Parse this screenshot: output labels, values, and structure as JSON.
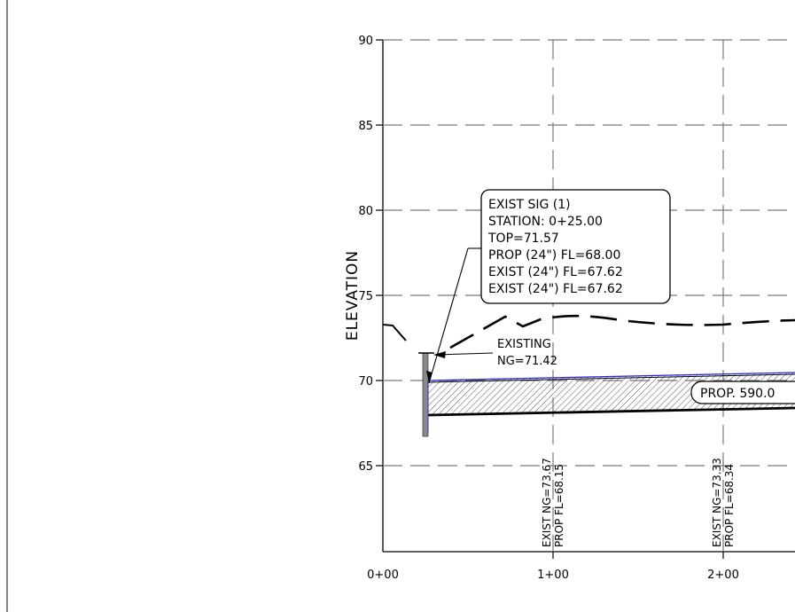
{
  "axis": {
    "ylabel": "ELEVATION",
    "y_ticks": [
      "90",
      "85",
      "80",
      "75",
      "70",
      "65"
    ],
    "x_ticks": [
      "0+00",
      "1+00",
      "2+00"
    ]
  },
  "callout": {
    "lines": [
      "EXIST SIG (1)",
      "STATION: 0+25.00",
      "TOP=71.57",
      "PROP (24\") FL=68.00",
      "EXIST (24\") FL=67.62",
      "EXIST (24\") FL=67.62"
    ]
  },
  "existing_label": {
    "line1": "EXISTING",
    "line2": "NG=71.42"
  },
  "pipe_label": "PROP. 590.0",
  "station_labels": [
    {
      "ng": "EXIST NG=73.67",
      "fl": "PROP FL=68.15"
    },
    {
      "ng": "EXIST NG=73.33",
      "fl": "PROP FL=68.34"
    }
  ],
  "colors": {
    "grid": "#777777",
    "linework": "#000000",
    "pipe_top": "#2b2bd6",
    "structure": "#888888"
  }
}
